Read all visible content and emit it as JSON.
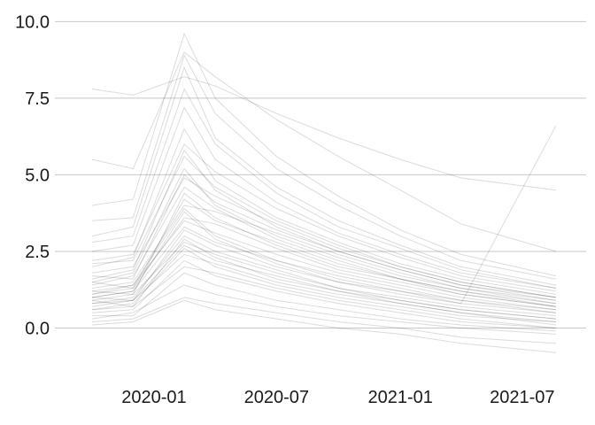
{
  "chart_data": {
    "type": "line",
    "title": "",
    "xlabel": "",
    "ylabel": "",
    "grid": {
      "horizontal": true,
      "vertical": false
    },
    "legend": "none",
    "line_color": "#000000",
    "grid_color": "#c8c8c8",
    "x_range": [
      "2019-09-10",
      "2021-09-05"
    ],
    "ylim": [
      -1.2,
      10.3
    ],
    "x_ticks": [
      {
        "value": "2020-01-01",
        "label": "2020-01"
      },
      {
        "value": "2020-07-01",
        "label": "2020-07"
      },
      {
        "value": "2021-01-01",
        "label": "2021-01"
      },
      {
        "value": "2021-07-01",
        "label": "2021-07"
      }
    ],
    "y_ticks": [
      {
        "value": 0,
        "label": "0.0"
      },
      {
        "value": 2.5,
        "label": "2.5"
      },
      {
        "value": 5,
        "label": "5.0"
      },
      {
        "value": 7.5,
        "label": "7.5"
      },
      {
        "value": 10,
        "label": "10.0"
      }
    ],
    "series": [
      {
        "x": [
          "2019-10-01",
          "2019-12-01",
          "2020-02-15",
          "2020-04-01",
          "2020-07-01",
          "2020-10-01",
          "2021-01-01",
          "2021-04-01",
          "2021-08-20"
        ],
        "values": [
          1.0,
          1.2,
          3.8,
          2.9,
          2.1,
          1.5,
          1.1,
          0.8,
          0.5
        ]
      },
      {
        "x": [
          "2019-10-01",
          "2019-12-01",
          "2020-02-15",
          "2020-04-01",
          "2020-07-01",
          "2020-10-01",
          "2021-01-01",
          "2021-04-01",
          "2021-08-20"
        ],
        "values": [
          0.6,
          0.8,
          2.6,
          2.0,
          1.4,
          1.0,
          0.7,
          0.4,
          0.2
        ]
      },
      {
        "x": [
          "2019-10-01",
          "2019-12-01",
          "2020-02-15",
          "2020-04-01",
          "2020-07-01",
          "2020-10-01",
          "2021-01-01",
          "2021-04-01",
          "2021-08-20"
        ],
        "values": [
          1.5,
          1.8,
          5.2,
          4.0,
          3.0,
          2.3,
          1.7,
          1.3,
          0.9
        ]
      },
      {
        "x": [
          "2019-10-01",
          "2019-12-01",
          "2020-02-15",
          "2020-04-01",
          "2020-07-01",
          "2020-10-01",
          "2021-01-01",
          "2021-04-01",
          "2021-08-20"
        ],
        "values": [
          2.0,
          2.3,
          6.5,
          4.8,
          3.6,
          2.8,
          2.1,
          1.6,
          1.1
        ]
      },
      {
        "x": [
          "2019-10-01",
          "2019-12-01",
          "2020-02-15",
          "2020-04-01",
          "2020-07-01",
          "2020-10-01",
          "2021-01-01",
          "2021-04-01",
          "2021-08-20"
        ],
        "values": [
          0.3,
          0.5,
          1.4,
          1.1,
          0.7,
          0.4,
          0.2,
          0.0,
          -0.2
        ]
      },
      {
        "x": [
          "2019-10-01",
          "2019-12-01",
          "2020-02-15",
          "2020-04-01",
          "2020-07-01",
          "2020-10-01",
          "2021-01-01",
          "2021-04-01",
          "2021-08-20"
        ],
        "values": [
          1.2,
          1.1,
          4.4,
          3.6,
          2.7,
          2.0,
          1.6,
          1.2,
          0.7
        ]
      },
      {
        "x": [
          "2019-10-01",
          "2019-12-01",
          "2020-02-15",
          "2020-04-01",
          "2020-07-01",
          "2020-10-01",
          "2021-01-01",
          "2021-04-01",
          "2021-08-20"
        ],
        "values": [
          3.0,
          3.3,
          8.5,
          6.2,
          4.6,
          3.5,
          2.7,
          2.0,
          1.4
        ]
      },
      {
        "x": [
          "2019-10-01",
          "2019-12-01",
          "2020-02-15",
          "2020-04-01",
          "2020-07-01",
          "2020-10-01",
          "2021-01-01",
          "2021-04-01",
          "2021-08-20"
        ],
        "values": [
          0.8,
          1.0,
          3.0,
          2.5,
          1.9,
          1.3,
          0.9,
          0.6,
          0.3
        ]
      },
      {
        "x": [
          "2019-10-01",
          "2019-12-01",
          "2020-02-15",
          "2020-04-01",
          "2020-07-01",
          "2020-10-01",
          "2021-01-01",
          "2021-04-01",
          "2021-08-20"
        ],
        "values": [
          1.8,
          2.0,
          4.9,
          4.3,
          3.4,
          2.6,
          2.0,
          1.5,
          1.0
        ]
      },
      {
        "x": [
          "2019-10-01",
          "2019-12-01",
          "2020-02-15",
          "2020-04-01",
          "2020-07-01",
          "2020-10-01",
          "2021-01-01",
          "2021-04-01",
          "2021-08-20"
        ],
        "values": [
          0.5,
          0.6,
          2.2,
          1.7,
          1.2,
          0.8,
          0.5,
          0.2,
          0.0
        ]
      },
      {
        "x": [
          "2019-10-01",
          "2019-12-01",
          "2020-02-15",
          "2020-04-01",
          "2020-07-01",
          "2020-10-01",
          "2021-01-01",
          "2021-04-01",
          "2021-08-20"
        ],
        "values": [
          2.5,
          2.7,
          7.2,
          5.5,
          4.1,
          3.1,
          2.4,
          1.8,
          1.3
        ]
      },
      {
        "x": [
          "2019-10-01",
          "2019-12-01",
          "2020-02-15",
          "2020-04-01",
          "2020-07-01",
          "2020-10-01",
          "2021-01-01",
          "2021-04-01",
          "2021-08-20"
        ],
        "values": [
          1.1,
          1.4,
          3.5,
          3.1,
          2.4,
          1.8,
          1.4,
          1.0,
          0.6
        ]
      },
      {
        "x": [
          "2019-10-01",
          "2019-12-01",
          "2020-02-15",
          "2020-04-01",
          "2020-07-01",
          "2020-10-01",
          "2021-01-01",
          "2021-04-01",
          "2021-08-20"
        ],
        "values": [
          0.9,
          0.7,
          2.9,
          2.3,
          1.6,
          1.2,
          0.8,
          0.5,
          0.1
        ]
      },
      {
        "x": [
          "2019-10-01",
          "2019-12-01",
          "2020-02-15",
          "2020-04-01",
          "2020-07-01",
          "2020-10-01",
          "2021-01-01",
          "2021-04-01",
          "2021-08-20"
        ],
        "values": [
          1.6,
          1.9,
          5.8,
          4.5,
          3.3,
          2.5,
          1.9,
          1.4,
          0.9
        ]
      },
      {
        "x": [
          "2019-10-01",
          "2019-12-01",
          "2020-02-15",
          "2020-04-01",
          "2020-07-01",
          "2020-10-01",
          "2021-01-01",
          "2021-04-01",
          "2021-08-20"
        ],
        "values": [
          4.0,
          4.2,
          9.6,
          7.5,
          5.6,
          4.3,
          3.2,
          2.4,
          1.7
        ]
      },
      {
        "x": [
          "2019-10-01",
          "2019-12-01",
          "2020-02-15",
          "2020-04-01",
          "2020-07-01",
          "2020-10-01",
          "2021-01-01",
          "2021-04-01",
          "2021-08-20"
        ],
        "values": [
          0.2,
          0.3,
          1.0,
          0.8,
          0.5,
          0.2,
          0.0,
          -0.3,
          -0.5
        ]
      },
      {
        "x": [
          "2019-10-01",
          "2019-12-01",
          "2020-02-15",
          "2020-04-01",
          "2020-07-01",
          "2020-10-01",
          "2021-01-01",
          "2021-04-01",
          "2021-08-20"
        ],
        "values": [
          1.3,
          1.5,
          4.0,
          3.8,
          3.1,
          2.4,
          1.8,
          1.3,
          0.8
        ]
      },
      {
        "x": [
          "2019-10-01",
          "2019-12-01",
          "2020-02-15",
          "2020-04-01",
          "2020-07-01",
          "2020-10-01",
          "2021-01-01",
          "2021-04-01",
          "2021-08-20"
        ],
        "values": [
          2.2,
          2.4,
          6.0,
          5.1,
          3.9,
          3.0,
          2.3,
          1.7,
          1.2
        ]
      },
      {
        "x": [
          "2019-10-01",
          "2019-12-01",
          "2020-02-15",
          "2020-04-01",
          "2020-07-01",
          "2020-10-01",
          "2021-01-01",
          "2021-04-01",
          "2021-08-20"
        ],
        "values": [
          0.7,
          0.9,
          2.4,
          2.1,
          1.5,
          1.1,
          0.8,
          0.5,
          0.2
        ]
      },
      {
        "x": [
          "2019-10-01",
          "2019-12-01",
          "2020-02-15",
          "2020-04-01",
          "2020-07-01",
          "2020-10-01",
          "2021-01-01",
          "2021-04-01",
          "2021-08-20"
        ],
        "values": [
          5.5,
          5.2,
          9.0,
          8.2,
          6.8,
          5.6,
          4.5,
          3.4,
          2.5
        ]
      },
      {
        "x": [
          "2019-10-01",
          "2019-12-01",
          "2020-02-15",
          "2020-04-01",
          "2020-07-01",
          "2020-10-01",
          "2021-01-01",
          "2021-04-01",
          "2021-08-20"
        ],
        "values": [
          1.0,
          0.9,
          3.2,
          2.7,
          2.0,
          1.5,
          1.2,
          0.9,
          0.5
        ]
      },
      {
        "x": [
          "2019-10-01",
          "2019-12-01",
          "2020-02-15",
          "2020-04-01",
          "2020-07-01",
          "2020-10-01",
          "2021-01-01",
          "2021-04-01",
          "2021-08-20"
        ],
        "values": [
          1.4,
          1.7,
          4.6,
          3.9,
          2.9,
          2.2,
          1.6,
          1.2,
          0.8
        ]
      },
      {
        "x": [
          "2019-10-01",
          "2019-12-01",
          "2020-02-15",
          "2020-04-01",
          "2020-07-01",
          "2020-10-01",
          "2021-01-01",
          "2021-04-01",
          "2021-08-20"
        ],
        "values": [
          0.4,
          0.4,
          1.8,
          1.4,
          0.9,
          0.6,
          0.3,
          0.1,
          -0.1
        ]
      },
      {
        "x": [
          "2019-10-01",
          "2019-12-01",
          "2020-02-15",
          "2020-04-01",
          "2020-07-01",
          "2020-10-01",
          "2021-01-01",
          "2021-04-01",
          "2021-08-20"
        ],
        "values": [
          2.8,
          3.0,
          7.8,
          6.0,
          4.4,
          3.3,
          2.6,
          1.9,
          1.3
        ]
      },
      {
        "x": [
          "2019-10-01",
          "2019-12-01",
          "2020-02-15",
          "2020-04-01",
          "2020-07-01",
          "2020-10-01",
          "2021-01-01",
          "2021-04-01",
          "2021-08-20"
        ],
        "values": [
          1.1,
          1.3,
          3.6,
          3.4,
          2.6,
          1.9,
          1.5,
          1.1,
          0.7
        ]
      },
      {
        "x": [
          "2019-10-01",
          "2019-12-01",
          "2020-02-15",
          "2020-04-01",
          "2020-07-01",
          "2020-10-01",
          "2021-01-01",
          "2021-04-01",
          "2021-08-20"
        ],
        "values": [
          0.9,
          1.1,
          2.8,
          2.4,
          1.8,
          1.3,
          1.0,
          0.7,
          0.4
        ]
      },
      {
        "x": [
          "2019-10-01",
          "2019-12-01",
          "2020-02-15",
          "2020-04-01",
          "2020-07-01",
          "2020-10-01",
          "2021-01-01",
          "2021-04-01",
          "2021-08-20"
        ],
        "values": [
          3.5,
          3.6,
          8.9,
          7.0,
          5.2,
          4.0,
          3.0,
          2.2,
          1.6
        ]
      },
      {
        "x": [
          "2019-10-01",
          "2019-12-01",
          "2020-02-15",
          "2020-04-01",
          "2020-07-01",
          "2020-10-01",
          "2021-01-01",
          "2021-04-01",
          "2021-08-20"
        ],
        "values": [
          1.7,
          1.6,
          5.0,
          4.1,
          3.2,
          2.5,
          1.9,
          1.4,
          1.0
        ]
      },
      {
        "x": [
          "2019-10-01",
          "2019-12-01",
          "2020-02-15",
          "2020-04-01",
          "2020-07-01",
          "2020-10-01",
          "2021-01-01",
          "2021-04-01",
          "2021-08-20"
        ],
        "values": [
          0.1,
          0.2,
          0.9,
          0.6,
          0.3,
          0.0,
          -0.2,
          -0.5,
          -0.8
        ]
      },
      {
        "x": [
          "2019-10-01",
          "2019-12-01",
          "2020-02-15",
          "2020-04-01",
          "2020-07-01",
          "2020-10-01",
          "2021-01-01",
          "2021-04-01",
          "2021-08-20"
        ],
        "values": [
          7.8,
          7.6,
          8.2,
          7.9,
          7.0,
          6.2,
          5.5,
          4.9,
          4.5
        ]
      },
      {
        "x": [
          "2019-10-01",
          "2019-12-01",
          "2020-02-15",
          "2020-04-01",
          "2020-07-01",
          "2020-10-01",
          "2021-01-01",
          "2021-04-01",
          "2021-08-20"
        ],
        "values": [
          1.2,
          1.4,
          3.9,
          3.0,
          2.2,
          1.7,
          1.3,
          0.9,
          0.6
        ]
      },
      {
        "x": [
          "2019-10-01",
          "2019-12-01",
          "2020-02-15",
          "2020-04-01",
          "2020-07-01",
          "2020-10-01",
          "2021-01-01",
          "2021-04-01",
          "2021-08-20"
        ],
        "values": [
          2.1,
          2.2,
          5.6,
          4.6,
          3.5,
          2.7,
          2.0,
          1.5,
          1.0
        ]
      },
      {
        "x": [
          "2019-10-01",
          "2019-12-01",
          "2020-02-15",
          "2020-04-01",
          "2020-07-01",
          "2020-10-01",
          "2021-01-01",
          "2021-04-01",
          "2021-08-20"
        ],
        "values": [
          0.6,
          0.7,
          2.0,
          1.8,
          1.3,
          0.9,
          0.6,
          0.3,
          0.0
        ]
      },
      {
        "x": [
          "2019-10-01",
          "2019-12-01",
          "2020-02-15",
          "2020-04-01",
          "2020-07-01",
          "2020-10-01",
          "2021-01-01",
          "2021-04-01",
          "2021-08-20"
        ],
        "values": [
          1.0,
          1.2,
          3.3,
          2.8,
          2.2,
          1.6,
          1.2,
          0.8,
          6.6
        ]
      },
      {
        "x": [
          "2019-10-01",
          "2019-12-01",
          "2020-02-15",
          "2020-04-01",
          "2020-07-01",
          "2020-10-01",
          "2021-01-01",
          "2021-04-01",
          "2021-08-20"
        ],
        "values": [
          1.5,
          1.3,
          4.2,
          3.5,
          2.8,
          2.1,
          1.6,
          1.1,
          0.7
        ]
      },
      {
        "x": [
          "2019-10-01",
          "2019-12-01",
          "2020-02-15",
          "2020-04-01",
          "2020-07-01",
          "2020-10-01",
          "2021-01-01",
          "2021-04-01",
          "2021-08-20"
        ],
        "values": [
          0.8,
          0.9,
          2.7,
          2.2,
          1.7,
          1.2,
          0.9,
          0.6,
          0.3
        ]
      }
    ]
  }
}
